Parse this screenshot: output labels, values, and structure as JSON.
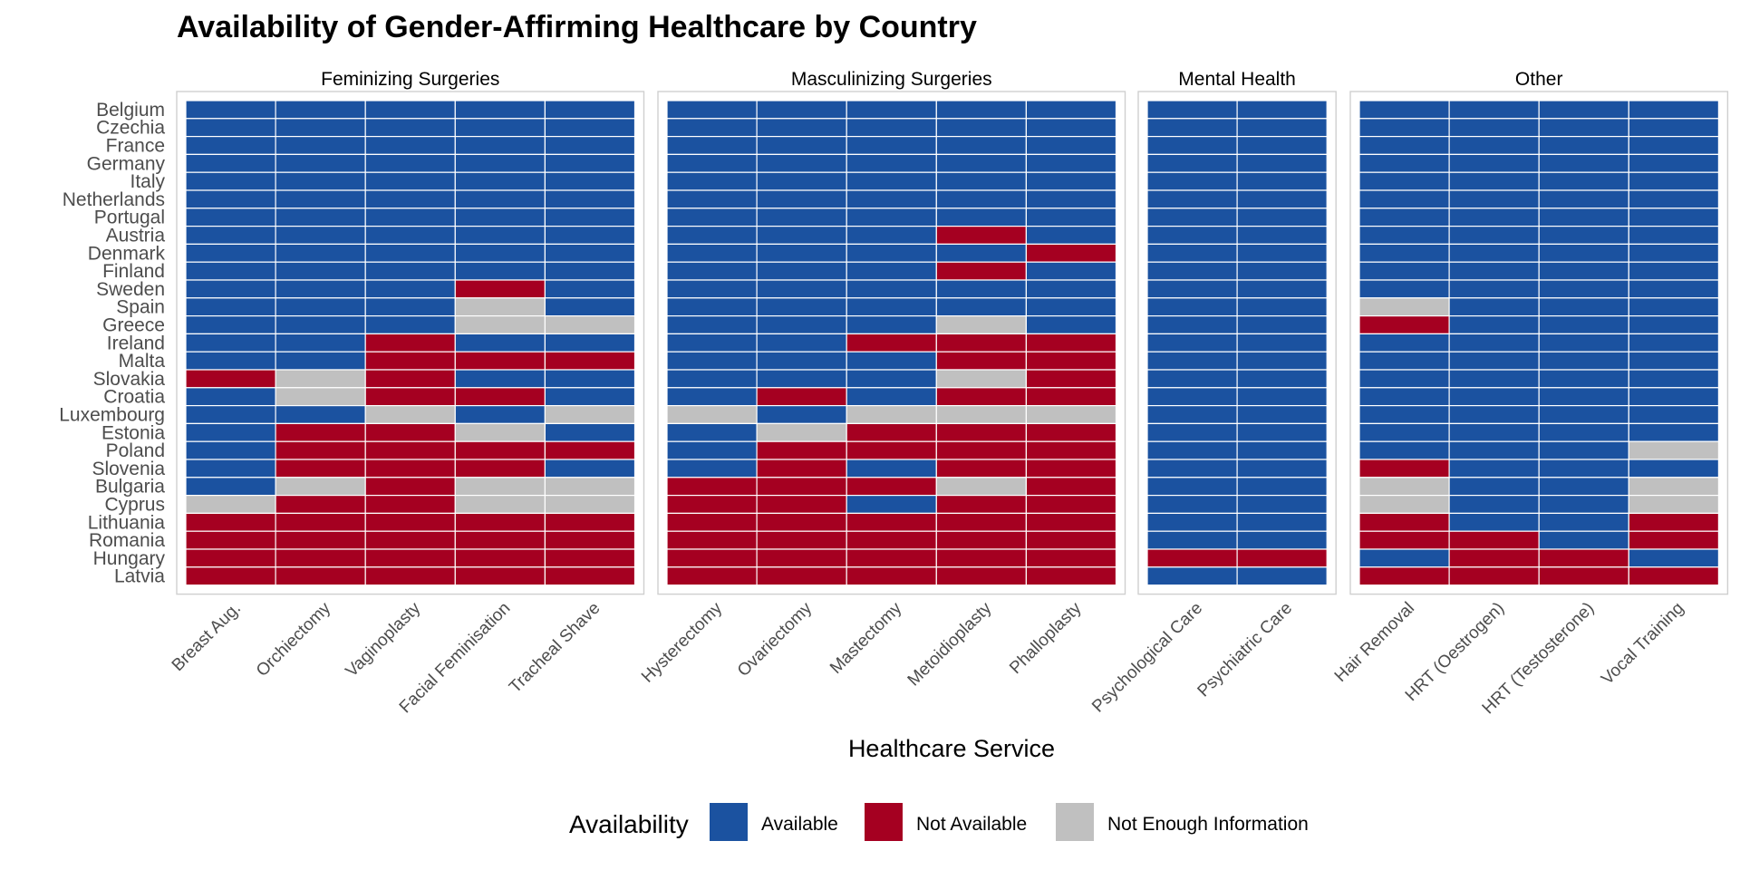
{
  "chart_data": {
    "type": "heatmap",
    "title": "Availability of Gender-Affirming Healthcare by Country",
    "xlabel": "Healthcare Service",
    "ylabel": "",
    "countries": [
      "Belgium",
      "Czechia",
      "France",
      "Germany",
      "Italy",
      "Netherlands",
      "Portugal",
      "Austria",
      "Denmark",
      "Finland",
      "Sweden",
      "Spain",
      "Greece",
      "Ireland",
      "Malta",
      "Slovakia",
      "Croatia",
      "Luxembourg",
      "Estonia",
      "Poland",
      "Slovenia",
      "Bulgaria",
      "Cyprus",
      "Lithuania",
      "Romania",
      "Hungary",
      "Latvia"
    ],
    "status_codes": {
      "A": "Available",
      "N": "Not Available",
      "I": "Not Enough Information"
    },
    "legend": {
      "title": "Availability",
      "position": "bottom",
      "entries": [
        {
          "code": "A",
          "label": "Available",
          "color": "#1B52A0"
        },
        {
          "code": "N",
          "label": "Not Available",
          "color": "#A50021"
        },
        {
          "code": "I",
          "label": "Not Enough Information",
          "color": "#C0C0C0"
        }
      ]
    },
    "facets": [
      {
        "name": "Feminizing Surgeries",
        "services": [
          "Breast Aug.",
          "Orchiectomy",
          "Vaginoplasty",
          "Facial Feminisation",
          "Tracheal Shave"
        ],
        "values": [
          [
            "A",
            "A",
            "A",
            "A",
            "A"
          ],
          [
            "A",
            "A",
            "A",
            "A",
            "A"
          ],
          [
            "A",
            "A",
            "A",
            "A",
            "A"
          ],
          [
            "A",
            "A",
            "A",
            "A",
            "A"
          ],
          [
            "A",
            "A",
            "A",
            "A",
            "A"
          ],
          [
            "A",
            "A",
            "A",
            "A",
            "A"
          ],
          [
            "A",
            "A",
            "A",
            "A",
            "A"
          ],
          [
            "A",
            "A",
            "A",
            "A",
            "A"
          ],
          [
            "A",
            "A",
            "A",
            "A",
            "A"
          ],
          [
            "A",
            "A",
            "A",
            "A",
            "A"
          ],
          [
            "A",
            "A",
            "A",
            "N",
            "A"
          ],
          [
            "A",
            "A",
            "A",
            "I",
            "A"
          ],
          [
            "A",
            "A",
            "A",
            "I",
            "I"
          ],
          [
            "A",
            "A",
            "N",
            "A",
            "A"
          ],
          [
            "A",
            "A",
            "N",
            "N",
            "N"
          ],
          [
            "N",
            "I",
            "N",
            "A",
            "A"
          ],
          [
            "A",
            "I",
            "N",
            "N",
            "A"
          ],
          [
            "A",
            "A",
            "I",
            "A",
            "I"
          ],
          [
            "A",
            "N",
            "N",
            "I",
            "A"
          ],
          [
            "A",
            "N",
            "N",
            "N",
            "N"
          ],
          [
            "A",
            "N",
            "N",
            "N",
            "A"
          ],
          [
            "A",
            "I",
            "N",
            "I",
            "I"
          ],
          [
            "I",
            "N",
            "N",
            "I",
            "I"
          ],
          [
            "N",
            "N",
            "N",
            "N",
            "N"
          ],
          [
            "N",
            "N",
            "N",
            "N",
            "N"
          ],
          [
            "N",
            "N",
            "N",
            "N",
            "N"
          ],
          [
            "N",
            "N",
            "N",
            "N",
            "N"
          ]
        ]
      },
      {
        "name": "Masculinizing Surgeries",
        "services": [
          "Hysterectomy",
          "Ovariectomy",
          "Mastectomy",
          "Metoidioplasty",
          "Phalloplasty"
        ],
        "values": [
          [
            "A",
            "A",
            "A",
            "A",
            "A"
          ],
          [
            "A",
            "A",
            "A",
            "A",
            "A"
          ],
          [
            "A",
            "A",
            "A",
            "A",
            "A"
          ],
          [
            "A",
            "A",
            "A",
            "A",
            "A"
          ],
          [
            "A",
            "A",
            "A",
            "A",
            "A"
          ],
          [
            "A",
            "A",
            "A",
            "A",
            "A"
          ],
          [
            "A",
            "A",
            "A",
            "A",
            "A"
          ],
          [
            "A",
            "A",
            "A",
            "N",
            "A"
          ],
          [
            "A",
            "A",
            "A",
            "A",
            "N"
          ],
          [
            "A",
            "A",
            "A",
            "N",
            "A"
          ],
          [
            "A",
            "A",
            "A",
            "A",
            "A"
          ],
          [
            "A",
            "A",
            "A",
            "A",
            "A"
          ],
          [
            "A",
            "A",
            "A",
            "I",
            "A"
          ],
          [
            "A",
            "A",
            "N",
            "N",
            "N"
          ],
          [
            "A",
            "A",
            "A",
            "N",
            "N"
          ],
          [
            "A",
            "A",
            "A",
            "I",
            "N"
          ],
          [
            "A",
            "N",
            "A",
            "N",
            "N"
          ],
          [
            "I",
            "A",
            "I",
            "I",
            "I"
          ],
          [
            "A",
            "I",
            "N",
            "N",
            "N"
          ],
          [
            "A",
            "N",
            "N",
            "N",
            "N"
          ],
          [
            "A",
            "N",
            "A",
            "N",
            "N"
          ],
          [
            "N",
            "N",
            "N",
            "I",
            "N"
          ],
          [
            "N",
            "N",
            "A",
            "N",
            "N"
          ],
          [
            "N",
            "N",
            "N",
            "N",
            "N"
          ],
          [
            "N",
            "N",
            "N",
            "N",
            "N"
          ],
          [
            "N",
            "N",
            "N",
            "N",
            "N"
          ],
          [
            "N",
            "N",
            "N",
            "N",
            "N"
          ]
        ]
      },
      {
        "name": "Mental Health",
        "services": [
          "Psychological Care",
          "Psychiatric Care"
        ],
        "values": [
          [
            "A",
            "A"
          ],
          [
            "A",
            "A"
          ],
          [
            "A",
            "A"
          ],
          [
            "A",
            "A"
          ],
          [
            "A",
            "A"
          ],
          [
            "A",
            "A"
          ],
          [
            "A",
            "A"
          ],
          [
            "A",
            "A"
          ],
          [
            "A",
            "A"
          ],
          [
            "A",
            "A"
          ],
          [
            "A",
            "A"
          ],
          [
            "A",
            "A"
          ],
          [
            "A",
            "A"
          ],
          [
            "A",
            "A"
          ],
          [
            "A",
            "A"
          ],
          [
            "A",
            "A"
          ],
          [
            "A",
            "A"
          ],
          [
            "A",
            "A"
          ],
          [
            "A",
            "A"
          ],
          [
            "A",
            "A"
          ],
          [
            "A",
            "A"
          ],
          [
            "A",
            "A"
          ],
          [
            "A",
            "A"
          ],
          [
            "A",
            "A"
          ],
          [
            "A",
            "A"
          ],
          [
            "N",
            "N"
          ],
          [
            "A",
            "A"
          ]
        ]
      },
      {
        "name": "Other",
        "services": [
          "Hair Removal",
          "HRT (Oestrogen)",
          "HRT (Testosterone)",
          "Vocal Training"
        ],
        "values": [
          [
            "A",
            "A",
            "A",
            "A"
          ],
          [
            "A",
            "A",
            "A",
            "A"
          ],
          [
            "A",
            "A",
            "A",
            "A"
          ],
          [
            "A",
            "A",
            "A",
            "A"
          ],
          [
            "A",
            "A",
            "A",
            "A"
          ],
          [
            "A",
            "A",
            "A",
            "A"
          ],
          [
            "A",
            "A",
            "A",
            "A"
          ],
          [
            "A",
            "A",
            "A",
            "A"
          ],
          [
            "A",
            "A",
            "A",
            "A"
          ],
          [
            "A",
            "A",
            "A",
            "A"
          ],
          [
            "A",
            "A",
            "A",
            "A"
          ],
          [
            "I",
            "A",
            "A",
            "A"
          ],
          [
            "N",
            "A",
            "A",
            "A"
          ],
          [
            "A",
            "A",
            "A",
            "A"
          ],
          [
            "A",
            "A",
            "A",
            "A"
          ],
          [
            "A",
            "A",
            "A",
            "A"
          ],
          [
            "A",
            "A",
            "A",
            "A"
          ],
          [
            "A",
            "A",
            "A",
            "A"
          ],
          [
            "A",
            "A",
            "A",
            "A"
          ],
          [
            "A",
            "A",
            "A",
            "I"
          ],
          [
            "N",
            "A",
            "A",
            "A"
          ],
          [
            "I",
            "A",
            "A",
            "I"
          ],
          [
            "I",
            "A",
            "A",
            "I"
          ],
          [
            "N",
            "A",
            "A",
            "N"
          ],
          [
            "N",
            "N",
            "A",
            "N"
          ],
          [
            "A",
            "N",
            "N",
            "A"
          ],
          [
            "N",
            "N",
            "N",
            "N"
          ]
        ]
      }
    ]
  }
}
